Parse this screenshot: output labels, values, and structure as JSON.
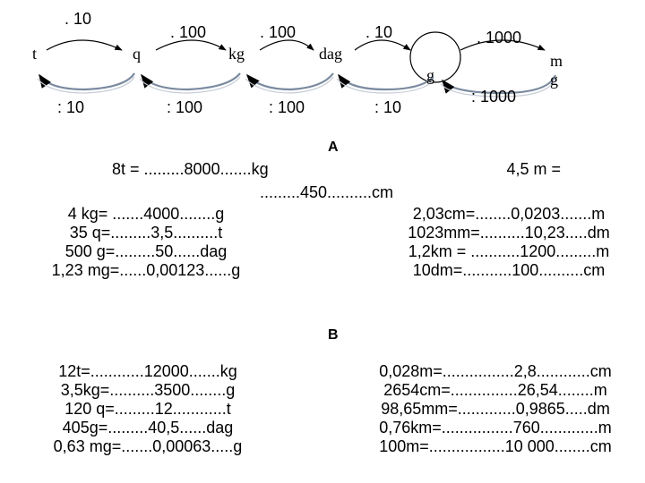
{
  "diagram": {
    "units": [
      "t",
      "q",
      "kg",
      "dag",
      "g",
      "mg"
    ],
    "multiply_ops": [
      ". 10",
      ". 100",
      ". 100",
      ". 10",
      ". 1000"
    ],
    "divide_ops": [
      ": 10",
      ": 100",
      ": 100",
      ": 10",
      ": 1000"
    ]
  },
  "section_a": {
    "label": "A",
    "left": [
      "8t = .........8000.......kg",
      "4 kg= .......4000........g",
      "35 q=.........3,5..........t",
      "500 g=.........50......dag",
      "1,23 mg=......0,00123......g"
    ],
    "right_first": "4,5 m =",
    "right_first_cont": ".........450..........cm",
    "right": [
      "2,03cm=........0,0203.......m",
      "1023mm=..........10,23.....dm",
      "1,2km = ...........1200.........m",
      "10dm=...........100..........cm"
    ]
  },
  "section_b": {
    "label": "B",
    "left": [
      "12t=............12000.......kg",
      "3,5kg=..........3500........g",
      "120 q=.........12............t",
      "405g=.........40,5......dag",
      "0,63  mg=.......0,00063.....g"
    ],
    "right": [
      "0,028m=................2,8............cm",
      "2654cm=...............26,54........m",
      "98,65mm=.............0,9865.....dm",
      "0,76km=................760.............m",
      "100m=.................10 000........cm"
    ]
  }
}
